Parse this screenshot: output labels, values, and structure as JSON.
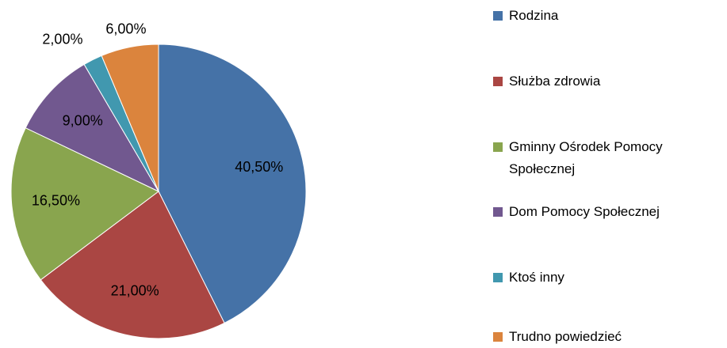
{
  "chart_data": {
    "type": "pie",
    "categories": [
      "Rodzina",
      "Służba zdrowia",
      "Gminny Ośrodek Pomocy Społecznej",
      "Dom Pomocy Społecznej",
      "Ktoś inny",
      "Trudno powiedzieć"
    ],
    "values": [
      40.5,
      21,
      16.5,
      9,
      2,
      6
    ],
    "value_labels": [
      "40,50%",
      "21,00%",
      "16,50%",
      "9,00%",
      "2,00%",
      "6,00%"
    ],
    "colors": [
      "#4572a7",
      "#aa4643",
      "#89a54e",
      "#71588f",
      "#4198af",
      "#db843d"
    ],
    "legend": "right"
  }
}
